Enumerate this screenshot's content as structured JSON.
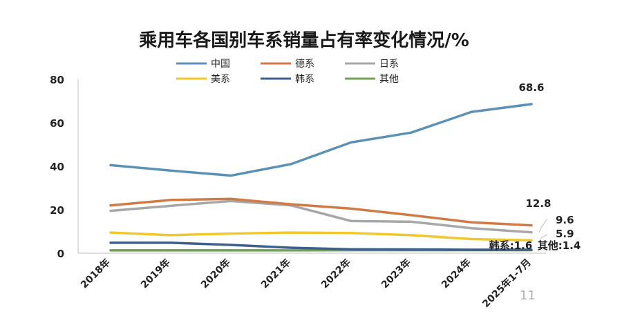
{
  "chart_data": {
    "type": "line",
    "title": "乘用车各国别车系销量占有率变化情况/%",
    "categories": [
      "2018年",
      "2019年",
      "2020年",
      "2021年",
      "2022年",
      "2023年",
      "2024年",
      "2025年1-7月"
    ],
    "ylim": [
      0,
      80
    ],
    "yticks": [
      0,
      20,
      40,
      60,
      80
    ],
    "grid": false,
    "legend_position": "top",
    "series": [
      {
        "name": "中国",
        "color": "#5b91b6",
        "values": [
          40.5,
          38,
          35.7,
          41,
          51,
          55.5,
          65,
          68.6
        ]
      },
      {
        "name": "德系",
        "color": "#d07a45",
        "values": [
          22,
          24.5,
          25,
          22.5,
          20.5,
          17.5,
          14.2,
          12.8
        ]
      },
      {
        "name": "日系",
        "color": "#a7a7a7",
        "values": [
          19.5,
          21.8,
          24,
          22,
          14.8,
          14.5,
          11.5,
          9.6
        ]
      },
      {
        "name": "美系",
        "color": "#f0c72c",
        "values": [
          9.5,
          8.3,
          9,
          9.5,
          9.3,
          8.3,
          6.5,
          5.9
        ]
      },
      {
        "name": "韩系",
        "color": "#3e5f8c",
        "values": [
          4.8,
          4.8,
          3.8,
          2.5,
          1.8,
          1.7,
          1.6,
          1.6
        ]
      },
      {
        "name": "其他",
        "color": "#71a257",
        "values": [
          1.3,
          1.3,
          1.3,
          1.3,
          1.4,
          1.4,
          1.4,
          1.4
        ]
      }
    ],
    "data_labels": [
      {
        "text": "68.6",
        "series": "中国"
      },
      {
        "text": "12.8",
        "series": "德系"
      },
      {
        "text": "9.6",
        "series": "日系"
      },
      {
        "text": "5.9",
        "series": "美系"
      },
      {
        "text": "韩系:1.6",
        "series": "韩系"
      },
      {
        "text": "其他:1.4",
        "series": "其他"
      }
    ]
  },
  "watermark": "11"
}
